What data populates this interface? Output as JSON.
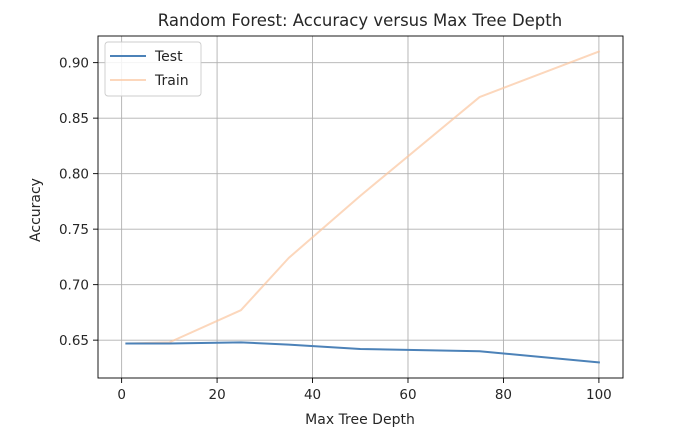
{
  "chart_data": {
    "type": "line",
    "title": "Random Forest: Accuracy versus Max Tree Depth",
    "xlabel": "Max Tree Depth",
    "ylabel": "Accuracy",
    "xlim": [
      -4.95,
      105.05
    ],
    "ylim": [
      0.6159,
      0.924
    ],
    "xticks": [
      0,
      20,
      40,
      60,
      80,
      100
    ],
    "xtick_labels": [
      "0",
      "20",
      "40",
      "60",
      "80",
      "100"
    ],
    "yticks": [
      0.65,
      0.7,
      0.75,
      0.8,
      0.85,
      0.9
    ],
    "ytick_labels": [
      "0.65",
      "0.70",
      "0.75",
      "0.80",
      "0.85",
      "0.90"
    ],
    "grid": true,
    "legend": "upper left",
    "x": [
      1,
      10,
      25,
      35,
      50,
      75,
      100
    ],
    "series": [
      {
        "name": "Test",
        "color": "#4c82b8",
        "opacity": 1.0,
        "values": [
          0.647,
          0.647,
          0.648,
          0.646,
          0.642,
          0.64,
          0.63
        ]
      },
      {
        "name": "Train",
        "color": "#fbc69f",
        "opacity": 0.7,
        "values": [
          0.647,
          0.648,
          0.677,
          0.724,
          0.78,
          0.869,
          0.91
        ]
      }
    ]
  }
}
